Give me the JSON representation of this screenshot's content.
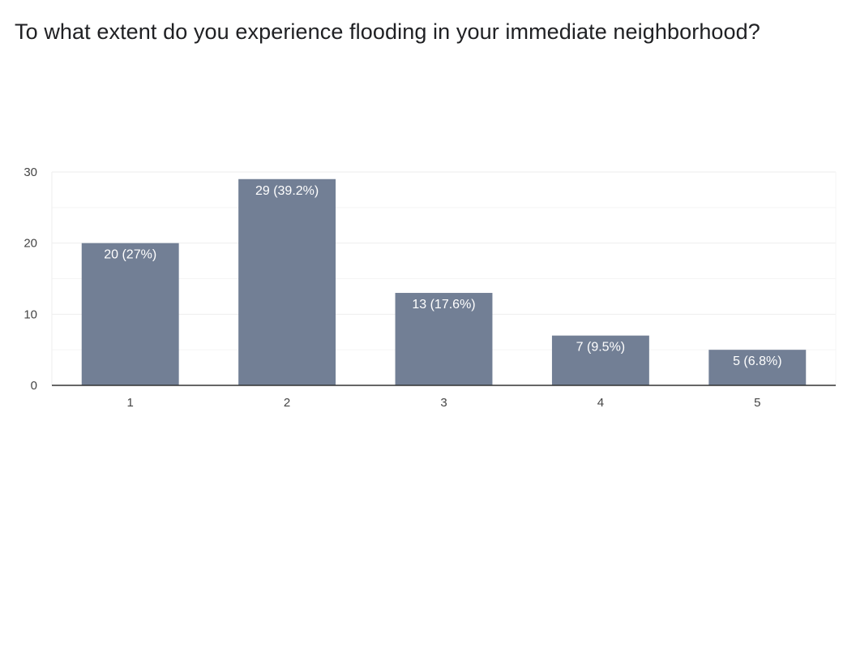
{
  "question": {
    "title": "To what extent do you experience flooding in your immediate neighborhood?"
  },
  "colors": {
    "bar": "#727f95",
    "grid": "#eeeeee",
    "axis": "#333333",
    "bar_label": "#ffffff",
    "tick_label": "#444444"
  },
  "chart_data": {
    "type": "bar",
    "title": "To what extent do you experience flooding in your immediate neighborhood?",
    "xlabel": "",
    "ylabel": "",
    "categories": [
      "1",
      "2",
      "3",
      "4",
      "5"
    ],
    "values": [
      20,
      29,
      13,
      7,
      5
    ],
    "data_labels": [
      "20 (27%)",
      "29 (39.2%)",
      "13 (17.6%)",
      "7 (9.5%)",
      "5 (6.8%)"
    ],
    "y_ticks": [
      0,
      10,
      20,
      30
    ],
    "ylim": [
      0,
      30
    ],
    "grid": true,
    "legend": "none"
  }
}
